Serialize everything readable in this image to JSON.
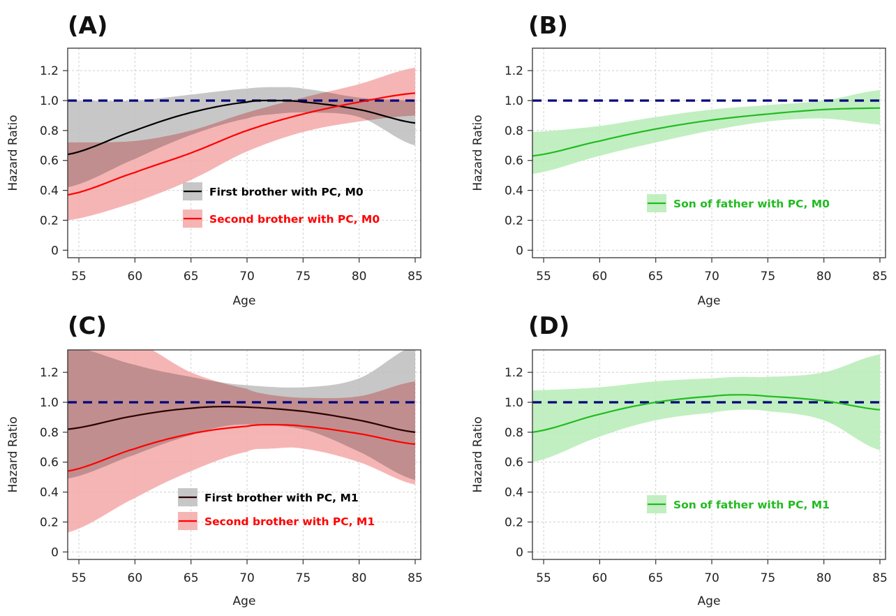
{
  "figure": {
    "title": ""
  },
  "chart_data": [
    {
      "panel_label": "(A)",
      "type": "line",
      "xlabel": "Age",
      "ylabel": "Hazard Ratio",
      "xlim": [
        54,
        85.5
      ],
      "ylim": [
        -0.05,
        1.35
      ],
      "x_ticks": [
        55,
        60,
        65,
        70,
        75,
        80,
        85
      ],
      "y_ticks": [
        0,
        0.2,
        0.4,
        0.6,
        0.8,
        1.0,
        1.2
      ],
      "y_tick_labels": [
        "0",
        "0.2",
        "0.4",
        "0.6",
        "0.8",
        "1.0",
        "1.2"
      ],
      "reference_line": {
        "y": 1.0,
        "style": "dashed",
        "color": "#00007a"
      },
      "grid": true,
      "legend": {
        "position": "lower-right",
        "entries": [
          "First brother with PC, M0",
          "Second brother with PC, M0"
        ]
      },
      "series": [
        {
          "name": "First brother with PC, M0",
          "color": "#000000",
          "band_color": "#bdbdbd",
          "label_color": "#000000",
          "x": [
            54,
            60,
            65,
            70,
            72.5,
            75,
            80,
            85
          ],
          "y": [
            0.64,
            0.8,
            0.92,
            0.99,
            1.0,
            0.99,
            0.94,
            0.85
          ],
          "lower": [
            0.42,
            0.61,
            0.77,
            0.88,
            0.91,
            0.92,
            0.89,
            0.7
          ],
          "upper": [
            1.0,
            1.0,
            1.04,
            1.08,
            1.09,
            1.08,
            1.02,
            1.0
          ]
        },
        {
          "name": "Second brother with PC, M0",
          "color": "#ff0000",
          "band_color": "#f4a8a8",
          "label_color": "#ff0000",
          "x": [
            54,
            60,
            65,
            70,
            75,
            80,
            85
          ],
          "y": [
            0.37,
            0.52,
            0.65,
            0.8,
            0.91,
            0.99,
            1.05
          ],
          "lower": [
            0.2,
            0.32,
            0.47,
            0.66,
            0.79,
            0.86,
            0.9
          ],
          "upper": [
            0.72,
            0.73,
            0.8,
            0.92,
            1.02,
            1.11,
            1.22
          ]
        }
      ]
    },
    {
      "panel_label": "(B)",
      "type": "line",
      "xlabel": "Age",
      "ylabel": "Hazard Ratio",
      "xlim": [
        54,
        85.5
      ],
      "ylim": [
        -0.05,
        1.35
      ],
      "x_ticks": [
        55,
        60,
        65,
        70,
        75,
        80,
        85
      ],
      "y_ticks": [
        0,
        0.2,
        0.4,
        0.6,
        0.8,
        1.0,
        1.2
      ],
      "y_tick_labels": [
        "0",
        "0.2",
        "0.4",
        "0.6",
        "0.8",
        "1.0",
        "1.2"
      ],
      "reference_line": {
        "y": 1.0,
        "style": "dashed",
        "color": "#00007a"
      },
      "grid": true,
      "legend": {
        "position": "lower-right",
        "entries": [
          "Son of father with PC, M0"
        ]
      },
      "series": [
        {
          "name": "Son of father with PC, M0",
          "color": "#22bb22",
          "band_color": "#b6ecb6",
          "label_color": "#22bb22",
          "x": [
            54,
            60,
            65,
            70,
            75,
            80,
            85
          ],
          "y": [
            0.63,
            0.73,
            0.81,
            0.87,
            0.91,
            0.94,
            0.95
          ],
          "lower": [
            0.51,
            0.63,
            0.72,
            0.8,
            0.86,
            0.88,
            0.84
          ],
          "upper": [
            0.79,
            0.83,
            0.89,
            0.94,
            0.97,
            1.0,
            1.07
          ]
        }
      ]
    },
    {
      "panel_label": "(C)",
      "type": "line",
      "xlabel": "Age",
      "ylabel": "Hazard Ratio",
      "xlim": [
        54,
        85.5
      ],
      "ylim": [
        -0.05,
        1.35
      ],
      "x_ticks": [
        55,
        60,
        65,
        70,
        75,
        80,
        85
      ],
      "y_ticks": [
        0,
        0.2,
        0.4,
        0.6,
        0.8,
        1.0,
        1.2
      ],
      "y_tick_labels": [
        "0",
        "0.2",
        "0.4",
        "0.6",
        "0.8",
        "1.0",
        "1.2"
      ],
      "reference_line": {
        "y": 1.0,
        "style": "dashed",
        "color": "#00007a"
      },
      "grid": true,
      "legend": {
        "position": "lower-center",
        "entries": [
          "First brother with PC, M1",
          "Second brother with PC, M1"
        ]
      },
      "series": [
        {
          "name": "First brother with PC, M1",
          "color": "#2a0000",
          "band_color": "#bdbdbd",
          "label_color": "#000000",
          "x": [
            54,
            60,
            65,
            69,
            75,
            80,
            85
          ],
          "y": [
            0.82,
            0.91,
            0.96,
            0.97,
            0.94,
            0.88,
            0.8
          ],
          "lower": [
            0.49,
            0.65,
            0.78,
            0.85,
            0.82,
            0.67,
            0.48
          ],
          "upper": [
            1.38,
            1.25,
            1.17,
            1.12,
            1.1,
            1.16,
            1.38
          ]
        },
        {
          "name": "Second brother with PC, M1",
          "color": "#ff0000",
          "band_color": "#f4a8a8",
          "label_color": "#ff0000",
          "x": [
            54,
            60,
            65,
            70,
            72,
            75,
            80,
            85
          ],
          "y": [
            0.54,
            0.69,
            0.79,
            0.84,
            0.85,
            0.84,
            0.79,
            0.72
          ],
          "lower": [
            0.13,
            0.36,
            0.54,
            0.67,
            0.69,
            0.69,
            0.6,
            0.45
          ],
          "upper": [
            1.4,
            1.4,
            1.2,
            1.09,
            1.05,
            1.03,
            1.04,
            1.14
          ]
        }
      ]
    },
    {
      "panel_label": "(D)",
      "type": "line",
      "xlabel": "Age",
      "ylabel": "Hazard Ratio",
      "xlim": [
        54,
        85.5
      ],
      "ylim": [
        -0.05,
        1.35
      ],
      "x_ticks": [
        55,
        60,
        65,
        70,
        75,
        80,
        85
      ],
      "y_ticks": [
        0,
        0.2,
        0.4,
        0.6,
        0.8,
        1.0,
        1.2
      ],
      "y_tick_labels": [
        "0",
        "0.2",
        "0.4",
        "0.6",
        "0.8",
        "1.0",
        "1.2"
      ],
      "reference_line": {
        "y": 1.0,
        "style": "dashed",
        "color": "#00007a"
      },
      "grid": true,
      "legend": {
        "position": "lower-right",
        "entries": [
          "Son of father with PC, M1"
        ]
      },
      "series": [
        {
          "name": "Son of father with PC, M1",
          "color": "#22bb22",
          "band_color": "#b6ecb6",
          "label_color": "#22bb22",
          "x": [
            54,
            60,
            65,
            70,
            72.5,
            75,
            80,
            85
          ],
          "y": [
            0.8,
            0.92,
            1.0,
            1.04,
            1.05,
            1.04,
            1.01,
            0.95
          ],
          "lower": [
            0.6,
            0.77,
            0.88,
            0.93,
            0.95,
            0.94,
            0.88,
            0.68
          ],
          "upper": [
            1.08,
            1.1,
            1.14,
            1.16,
            1.17,
            1.17,
            1.2,
            1.32
          ]
        }
      ]
    }
  ]
}
